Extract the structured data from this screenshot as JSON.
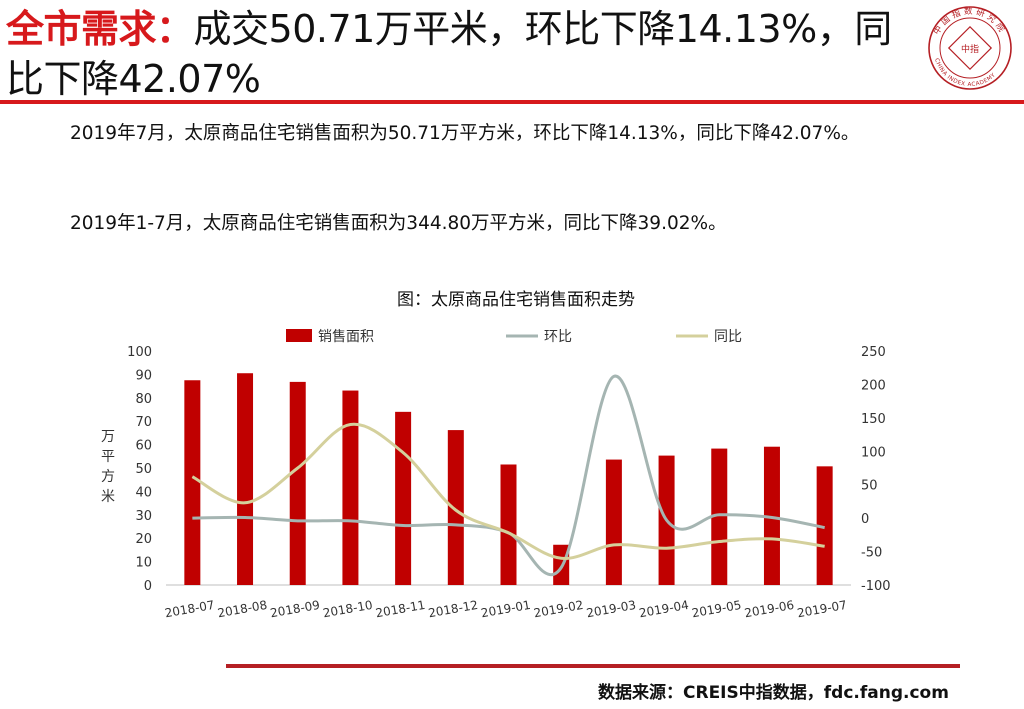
{
  "title": {
    "highlight": "全市需求：",
    "rest": "成交50.71万平米，环比下降14.13%，同比下降42.07%"
  },
  "paragraphs": [
    "2019年7月，太原商品住宅销售面积为50.71万平方米，环比下降14.13%，同比下降42.07%。",
    "2019年1-7月，太原商品住宅销售面积为344.80万平方米，同比下降39.02%。"
  ],
  "logo": {
    "text": "中国指数研究院",
    "center": "中指",
    "subtitle": "CHINA INDEX ACADEMY"
  },
  "source": "数据来源：CREIS中指数据，fdc.fang.com",
  "colors": {
    "accent": "#d7191c",
    "bar": "#c00000",
    "mom": "#a5b5b2",
    "yoy": "#d4d09c"
  },
  "chart_data": {
    "type": "bar",
    "title": "图：太原商品住宅销售面积走势",
    "ylabel": "万平方米",
    "y2label": "%",
    "ylim": [
      0,
      100
    ],
    "y2lim": [
      -100,
      250
    ],
    "yticks": [
      0,
      10,
      20,
      30,
      40,
      50,
      60,
      70,
      80,
      90,
      100
    ],
    "y2ticks": [
      -100,
      -50,
      0,
      50,
      100,
      150,
      200,
      250
    ],
    "categories": [
      "2018-07",
      "2018-08",
      "2018-09",
      "2018-10",
      "2018-11",
      "2018-12",
      "2019-01",
      "2019-02",
      "2019-03",
      "2019-04",
      "2019-05",
      "2019-06",
      "2019-07"
    ],
    "legend_position": "top",
    "series": [
      {
        "name": "销售面积",
        "type": "bar",
        "axis": "left",
        "values": [
          87.5,
          90.5,
          86.8,
          83.1,
          74.0,
          66.2,
          51.5,
          17.2,
          53.6,
          55.3,
          58.3,
          59.1,
          50.71
        ]
      },
      {
        "name": "环比",
        "type": "line",
        "axis": "right",
        "values": [
          0,
          1,
          -4,
          -4,
          -11,
          -10,
          -22,
          -74,
          212,
          -3,
          5,
          1,
          -14.13
        ]
      },
      {
        "name": "同比",
        "type": "line",
        "axis": "right",
        "values": [
          62,
          23,
          75,
          140,
          98,
          12,
          -22,
          -60,
          -40,
          -45,
          -35,
          -31,
          -42.07
        ]
      }
    ]
  }
}
